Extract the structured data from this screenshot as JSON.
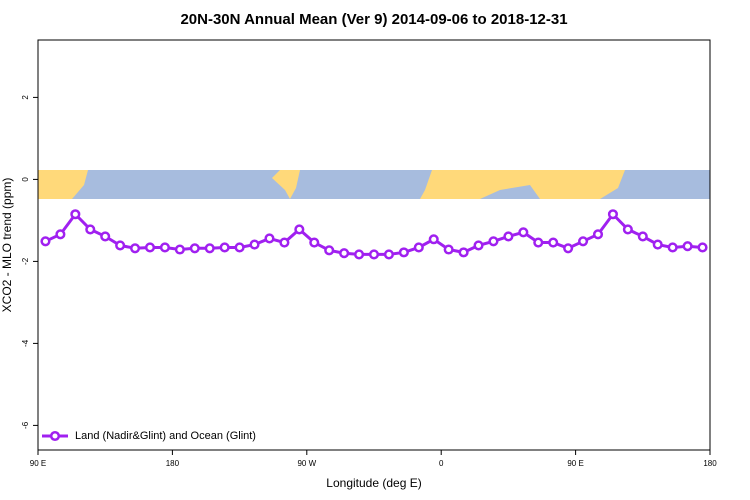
{
  "chart_data": {
    "type": "line",
    "title": "20N-30N Annual Mean (Ver 9)   2014-09-06 to 2018-12-31",
    "xlabel": "Longitude (deg E)",
    "ylabel": "XCO2 - MLO trend (ppm)",
    "x": [
      95,
      105,
      115,
      125,
      135,
      145,
      155,
      165,
      175,
      185,
      195,
      205,
      215,
      225,
      235,
      245,
      255,
      265,
      275,
      285,
      295,
      305,
      315,
      325,
      335,
      345,
      355,
      365,
      375,
      385,
      395,
      405,
      415,
      425,
      435,
      445,
      455,
      465,
      475,
      485,
      495,
      505,
      515,
      525,
      535
    ],
    "series": [
      {
        "name": "Land (Nadir&Glint) and Ocean (Glint)",
        "color": "#a020f0",
        "values": [
          -1.51,
          -1.34,
          -0.85,
          -1.22,
          -1.39,
          -1.61,
          -1.68,
          -1.66,
          -1.66,
          -1.71,
          -1.68,
          -1.68,
          -1.66,
          -1.66,
          -1.59,
          -1.44,
          -1.54,
          -1.22,
          -1.54,
          -1.73,
          -1.8,
          -1.83,
          -1.83,
          -1.83,
          -1.78,
          -1.66,
          -1.46,
          -1.71,
          -1.78,
          -1.61,
          -1.51,
          -1.39,
          -1.29,
          -1.54,
          -1.54,
          -1.68,
          -1.51,
          -1.34,
          -0.85,
          -1.22,
          -1.39,
          -1.59,
          -1.66,
          -1.63,
          -1.66
        ]
      }
    ],
    "xlim": [
      90,
      540
    ],
    "xticks": [
      {
        "value": 90,
        "label": "90 E"
      },
      {
        "value": 180,
        "label": "180"
      },
      {
        "value": 270,
        "label": "90 W"
      },
      {
        "value": 360,
        "label": "0"
      },
      {
        "value": 450,
        "label": "90 E"
      },
      {
        "value": 540,
        "label": "180"
      }
    ],
    "ylim": [
      -6.6,
      3.4
    ],
    "yticks": [
      -6,
      -4,
      -2,
      0,
      2
    ],
    "legend": "bottom-left"
  }
}
